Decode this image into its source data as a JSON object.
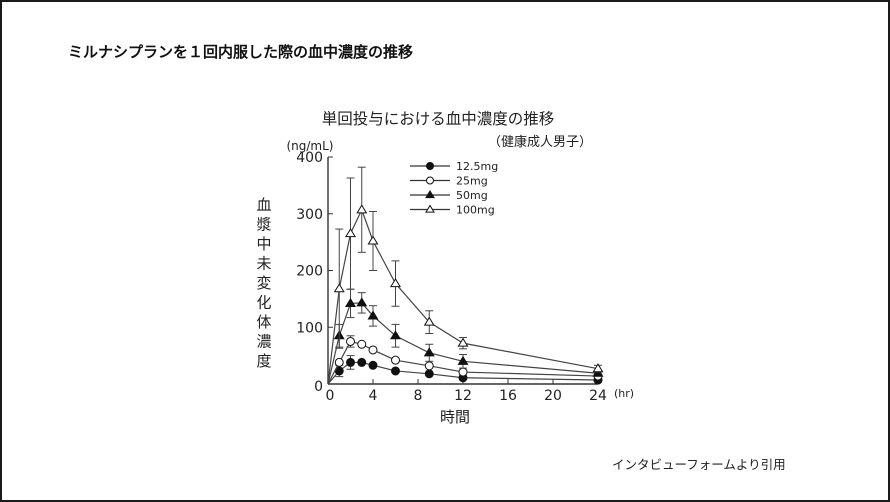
{
  "slide": {
    "title": "ミルナシプランを１回内服した際の血中濃度の推移",
    "citation": "インタビューフォームより引用"
  },
  "chart_data": {
    "type": "line",
    "title": "単回投与における血中濃度の推移",
    "subtitle": "（健康成人男子）",
    "xlabel": "時間",
    "x_unit": "(hr)",
    "ylabel": "血漿中未変化体濃度",
    "y_unit": "(ng/mL)",
    "xlim": [
      0,
      24
    ],
    "ylim": [
      0,
      400
    ],
    "x_ticks": [
      0,
      4,
      8,
      12,
      16,
      20,
      24
    ],
    "y_ticks": [
      0,
      100,
      200,
      300,
      400
    ],
    "grid": false,
    "legend_position": "top-center",
    "x": [
      1,
      2,
      3,
      4,
      6,
      9,
      12,
      24
    ],
    "series": [
      {
        "name": "12.5mg",
        "marker": "filled-circle",
        "values": [
          23,
          38,
          38,
          33,
          23,
          18,
          11,
          7
        ],
        "error": [
          10,
          12,
          0,
          0,
          0,
          0,
          0,
          0
        ]
      },
      {
        "name": "25mg",
        "marker": "open-circle",
        "values": [
          38,
          75,
          70,
          60,
          42,
          32,
          21,
          14
        ],
        "error": [
          0,
          10,
          0,
          0,
          0,
          0,
          0,
          0
        ]
      },
      {
        "name": "50mg",
        "marker": "filled-triangle",
        "values": [
          85,
          142,
          143,
          120,
          85,
          55,
          40,
          19
        ],
        "error": [
          20,
          25,
          18,
          18,
          20,
          15,
          12,
          5
        ]
      },
      {
        "name": "100mg",
        "marker": "open-triangle",
        "values": [
          168,
          265,
          307,
          252,
          177,
          109,
          72,
          27
        ],
        "error": [
          105,
          98,
          75,
          52,
          40,
          20,
          10,
          6
        ]
      }
    ]
  }
}
